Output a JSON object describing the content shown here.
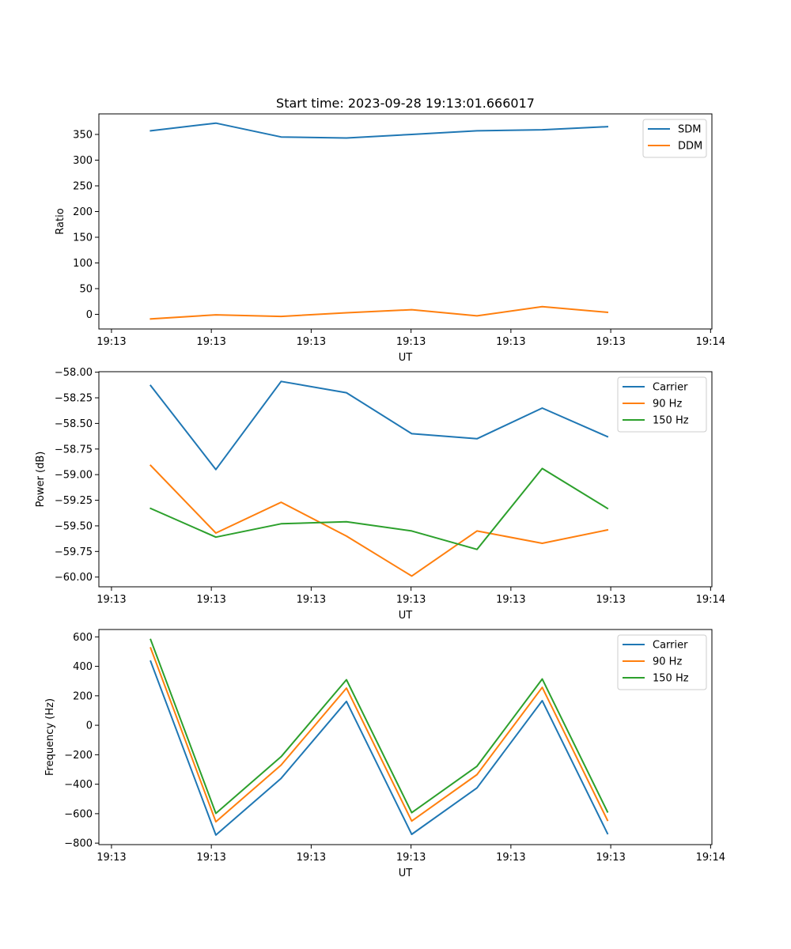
{
  "chart_data": [
    {
      "type": "line",
      "title": "Start time: 2023-09-28 19:13:01.666017",
      "xlabel": "UT",
      "ylabel": "Ratio",
      "x": [
        1,
        2,
        3,
        4,
        5,
        6,
        7,
        8
      ],
      "xlim": [
        0.207,
        9.6
      ],
      "x_ticks": [
        0.4,
        1.93,
        3.46,
        4.99,
        6.52,
        8.05,
        9.58
      ],
      "x_tick_labels": [
        "19:13",
        "19:13",
        "19:13",
        "19:13",
        "19:13",
        "19:13",
        "19:14"
      ],
      "ylim": [
        -28.5,
        390
      ],
      "y_ticks": [
        0,
        50,
        100,
        150,
        200,
        250,
        300,
        350
      ],
      "y_tick_labels": [
        "0",
        "50",
        "100",
        "150",
        "200",
        "250",
        "300",
        "350"
      ],
      "legend": "top-right",
      "series": [
        {
          "name": "SDM",
          "color": "#1f77b4",
          "values": [
            357,
            372,
            345,
            343,
            350,
            357,
            359,
            365
          ]
        },
        {
          "name": "DDM",
          "color": "#ff7f0e",
          "values": [
            -9,
            -1,
            -4,
            3,
            9,
            -3,
            15,
            4
          ]
        }
      ]
    },
    {
      "type": "line",
      "title": "",
      "xlabel": "UT",
      "ylabel": "Power (dB)",
      "x": [
        1,
        2,
        3,
        4,
        5,
        6,
        7,
        8
      ],
      "xlim": [
        0.207,
        9.6
      ],
      "x_ticks": [
        0.4,
        1.93,
        3.46,
        4.99,
        6.52,
        8.05,
        9.58
      ],
      "x_tick_labels": [
        "19:13",
        "19:13",
        "19:13",
        "19:13",
        "19:13",
        "19:13",
        "19:14"
      ],
      "ylim": [
        -60.095,
        -57.995
      ],
      "y_ticks": [
        -60.0,
        -59.75,
        -59.5,
        -59.25,
        -59.0,
        -58.75,
        -58.5,
        -58.25,
        -58.0
      ],
      "y_tick_labels": [
        "−60.00",
        "−59.75",
        "−59.50",
        "−59.25",
        "−59.00",
        "−58.75",
        "−58.50",
        "−58.25",
        "−58.00"
      ],
      "legend": "top-right",
      "series": [
        {
          "name": "Carrier",
          "color": "#1f77b4",
          "values": [
            -58.13,
            -58.95,
            -58.09,
            -58.2,
            -58.6,
            -58.65,
            -58.35,
            -58.63
          ]
        },
        {
          "name": "90 Hz",
          "color": "#ff7f0e",
          "values": [
            -58.91,
            -59.57,
            -59.27,
            -59.6,
            -59.99,
            -59.55,
            -59.67,
            -59.54
          ]
        },
        {
          "name": "150 Hz",
          "color": "#2ca02c",
          "values": [
            -59.33,
            -59.61,
            -59.48,
            -59.46,
            -59.55,
            -59.73,
            -58.94,
            -59.33
          ]
        }
      ]
    },
    {
      "type": "line",
      "title": "",
      "xlabel": "UT",
      "ylabel": "Frequency (Hz)",
      "x": [
        1,
        2,
        3,
        4,
        5,
        6,
        7,
        8
      ],
      "xlim": [
        0.207,
        9.6
      ],
      "x_ticks": [
        0.4,
        1.93,
        3.46,
        4.99,
        6.52,
        8.05,
        9.58
      ],
      "x_tick_labels": [
        "19:13",
        "19:13",
        "19:13",
        "19:13",
        "19:13",
        "19:13",
        "19:14"
      ],
      "ylim": [
        -810,
        650
      ],
      "y_ticks": [
        -800,
        -600,
        -400,
        -200,
        0,
        200,
        400,
        600
      ],
      "y_tick_labels": [
        "−800",
        "−600",
        "−400",
        "−200",
        "0",
        "200",
        "400",
        "600"
      ],
      "legend": "top-right",
      "series": [
        {
          "name": "Carrier",
          "color": "#1f77b4",
          "values": [
            435,
            -745,
            -360,
            162,
            -740,
            -425,
            167,
            -735
          ]
        },
        {
          "name": "90 Hz",
          "color": "#ff7f0e",
          "values": [
            525,
            -655,
            -270,
            252,
            -650,
            -335,
            257,
            -645
          ]
        },
        {
          "name": "150 Hz",
          "color": "#2ca02c",
          "values": [
            582,
            -598,
            -213,
            309,
            -593,
            -278,
            314,
            -588
          ]
        }
      ]
    }
  ]
}
